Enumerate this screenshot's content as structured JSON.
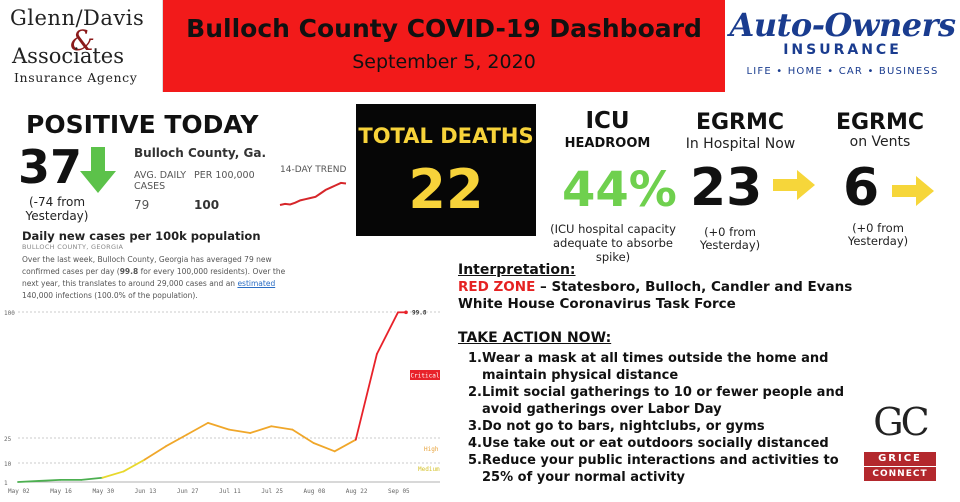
{
  "header": {
    "left_logo": {
      "line1": "Glenn/Davis",
      "amp": "&",
      "line2": "Associates",
      "line3": "Insurance Agency"
    },
    "title": "Bulloch County COVID-19 Dashboard",
    "date": "September 5, 2020",
    "right_logo": {
      "brand": "Auto-Owners",
      "sub": "INSURANCE",
      "tagline": "LIFE • HOME • CAR • BUSINESS",
      "color": "#1a3c8f"
    }
  },
  "positive": {
    "title": "POSITIVE TODAY",
    "value": "37",
    "change": "(-74 from Yesterday)",
    "arrow_color": "#5cc24a"
  },
  "county_stats": {
    "county": "Bulloch County, Ga.",
    "avg_label": "AVG. DAILY CASES",
    "per_label": "PER 100,000",
    "avg_value": "79",
    "per_value": "100",
    "trend_label": "14-DAY TREND",
    "trend": [
      62,
      64,
      63,
      66,
      70,
      72,
      74,
      76,
      82,
      88,
      92,
      96,
      100,
      99
    ]
  },
  "daily": {
    "title": "Daily new cases per 100k population",
    "subtitle": "BULLOCH COUNTY, GEORGIA",
    "desc_before": "Over the last week, Bulloch County, Georgia has averaged 79 new confirmed cases per day (",
    "desc_bold": "99.8",
    "desc_mid": " for every 100,000 residents). Over the next year, this translates to around 29,000 cases and an ",
    "desc_link": "estimated",
    "desc_after": " 140,000 infections (100.0% of the population)."
  },
  "chart_data": {
    "type": "line",
    "title": "",
    "xlabel": "",
    "ylabel": "",
    "x": [
      "May 02",
      "May 09",
      "May 16",
      "May 23",
      "May 30",
      "Jun 06",
      "Jun 13",
      "Jun 20",
      "Jun 27",
      "Jul 04",
      "Jul 11",
      "Jul 18",
      "Jul 25",
      "Aug 01",
      "Aug 08",
      "Aug 15",
      "Aug 22",
      "Aug 29",
      "Sep 05"
    ],
    "values": [
      1,
      1.5,
      2,
      2,
      3,
      6,
      12,
      20,
      27,
      34,
      30,
      28,
      32,
      30,
      22,
      17,
      24,
      75,
      99.8
    ],
    "ylim": [
      0,
      100
    ],
    "y_ticks": [
      "100",
      "25",
      "10",
      "1"
    ],
    "x_ticks": [
      "May 02",
      "May 16",
      "May 30",
      "Jun 13",
      "Jun 27",
      "Jul 11",
      "Jul 25",
      "Aug 08",
      "Aug 22",
      "Sep 05"
    ],
    "end_label": "99.8",
    "thresholds": [
      {
        "name": "Critical",
        "value": 100,
        "color": "#e8222a"
      },
      {
        "name": "High",
        "value": 25,
        "color": "#e7a23a"
      },
      {
        "name": "Medium",
        "value": 10,
        "color": "#d4c22c"
      }
    ],
    "colors": {
      "critical": "#e8222a",
      "high": "#f0a72a",
      "medium": "#e8d82c",
      "low": "#4caf50"
    }
  },
  "deaths": {
    "label": "TOTAL DEATHS",
    "value": "22",
    "color": "#f7d33a"
  },
  "icu": {
    "title": "ICU",
    "subtitle": "HEADROOM",
    "value": "44%",
    "note": "(ICU hospital capacity adequate to absorbe spike)",
    "color": "#6fd04e"
  },
  "egrmc_hospital": {
    "title": "EGRMC",
    "subtitle": "In Hospital Now",
    "value": "23",
    "note": "(+0 from Yesterday)"
  },
  "egrmc_vents": {
    "title": "EGRMC",
    "subtitle": "on Vents",
    "value": "6",
    "note": "(+0 from Yesterday)"
  },
  "interpretation": {
    "head": "Interpretation:",
    "zone": "RED ZONE",
    "zone_rest": " – Statesboro, Bulloch, Candler and Evans",
    "line2": "White House Coronavirus Task Force"
  },
  "take_action": {
    "head": "TAKE ACTION NOW:",
    "items": [
      {
        "n": "1.",
        "text": "Wear a mask at all times outside the home and maintain physical distance"
      },
      {
        "n": "2.",
        "text": "Limit social gatherings to 10 or fewer people and avoid gatherings over Labor Day"
      },
      {
        "n": "3.",
        "text": "Do not go to bars, nightclubs, or gyms"
      },
      {
        "n": "4.",
        "text": "Use take out or eat outdoors socially distanced"
      },
      {
        "n": "5.",
        "text": "Reduce your public interactions and activities to 25% of your normal activity"
      }
    ]
  },
  "grice": {
    "mono": "GC",
    "line1": "GRICE",
    "line2": "CONNECT"
  }
}
